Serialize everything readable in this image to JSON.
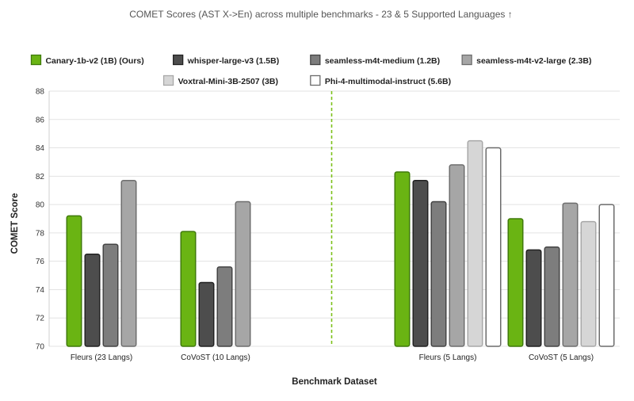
{
  "chart_data": {
    "type": "bar",
    "title": "COMET Scores (AST X->En) across multiple benchmarks - 23 & 5 Supported Languages ↑",
    "xlabel": "Benchmark Dataset",
    "ylabel": "COMET Score",
    "ylim": [
      70,
      88
    ],
    "yticks": [
      70,
      72,
      74,
      76,
      78,
      80,
      82,
      84,
      86,
      88
    ],
    "grid": true,
    "legend_position": "top",
    "categories": [
      "Fleurs (23 Langs)",
      "CoVoST (10 Langs)",
      "Fleurs (5 Langs)",
      "CoVoST (5 Langs)"
    ],
    "series": [
      {
        "name": "Canary-1b-v2 (1B) (Ours)",
        "fill": "#6ab413",
        "stroke": "#3f7a0a",
        "values": [
          79.2,
          78.1,
          82.3,
          79.0
        ]
      },
      {
        "name": "whisper-large-v3 (1.5B)",
        "fill": "#4d4d4d",
        "stroke": "#222222",
        "values": [
          76.5,
          74.5,
          81.7,
          76.8
        ]
      },
      {
        "name": "seamless-m4t-medium (1.2B)",
        "fill": "#7d7d7d",
        "stroke": "#444444",
        "values": [
          77.2,
          75.6,
          80.2,
          77.0
        ]
      },
      {
        "name": "seamless-m4t-v2-large (2.3B)",
        "fill": "#a6a6a6",
        "stroke": "#6e6e6e",
        "values": [
          81.7,
          80.2,
          82.8,
          80.1
        ]
      },
      {
        "name": "Voxtral-Mini-3B-2507 (3B)",
        "fill": "#d6d6d6",
        "stroke": "#a8a8a8",
        "values": [
          null,
          null,
          84.5,
          78.8
        ]
      },
      {
        "name": "Phi-4-multimodal-instruct (5.6B)",
        "fill": "#ffffff",
        "stroke": "#6b6b6b",
        "values": [
          null,
          null,
          84.0,
          80.0
        ]
      }
    ],
    "divider": {
      "after_category_index": 1,
      "color": "#7cc11a",
      "style": "dashed"
    }
  }
}
